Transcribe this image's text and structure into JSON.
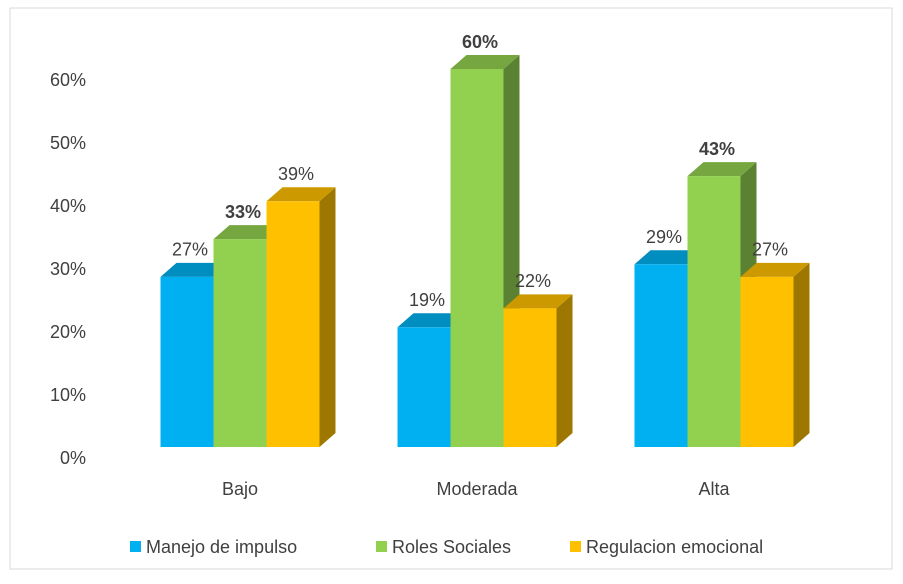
{
  "chart_data": {
    "type": "bar3d",
    "categories": [
      "Bajo",
      "Moderada",
      "Alta"
    ],
    "series": [
      {
        "name": "Manejo de impulso",
        "color": "#00b0f0",
        "values": [
          27,
          19,
          29
        ],
        "value_labels": [
          "27%",
          "19%",
          "29%"
        ]
      },
      {
        "name": "Roles Sociales",
        "color": "#92d050",
        "values": [
          33,
          60,
          43
        ],
        "value_labels": [
          "33%",
          "60%",
          "43%"
        ]
      },
      {
        "name": "Regulacion emocional",
        "color": "#ffc000",
        "values": [
          39,
          22,
          27
        ],
        "value_labels": [
          "39%",
          "22%",
          "27%"
        ]
      }
    ],
    "ylim": [
      0,
      60
    ],
    "yticks": [
      {
        "value": 0,
        "label": "0%"
      },
      {
        "value": 10,
        "label": "10%"
      },
      {
        "value": 20,
        "label": "20%"
      },
      {
        "value": 30,
        "label": "30%"
      },
      {
        "value": 40,
        "label": "40%"
      },
      {
        "value": 50,
        "label": "50%"
      },
      {
        "value": 60,
        "label": "60%"
      }
    ],
    "legend": "bottom"
  }
}
